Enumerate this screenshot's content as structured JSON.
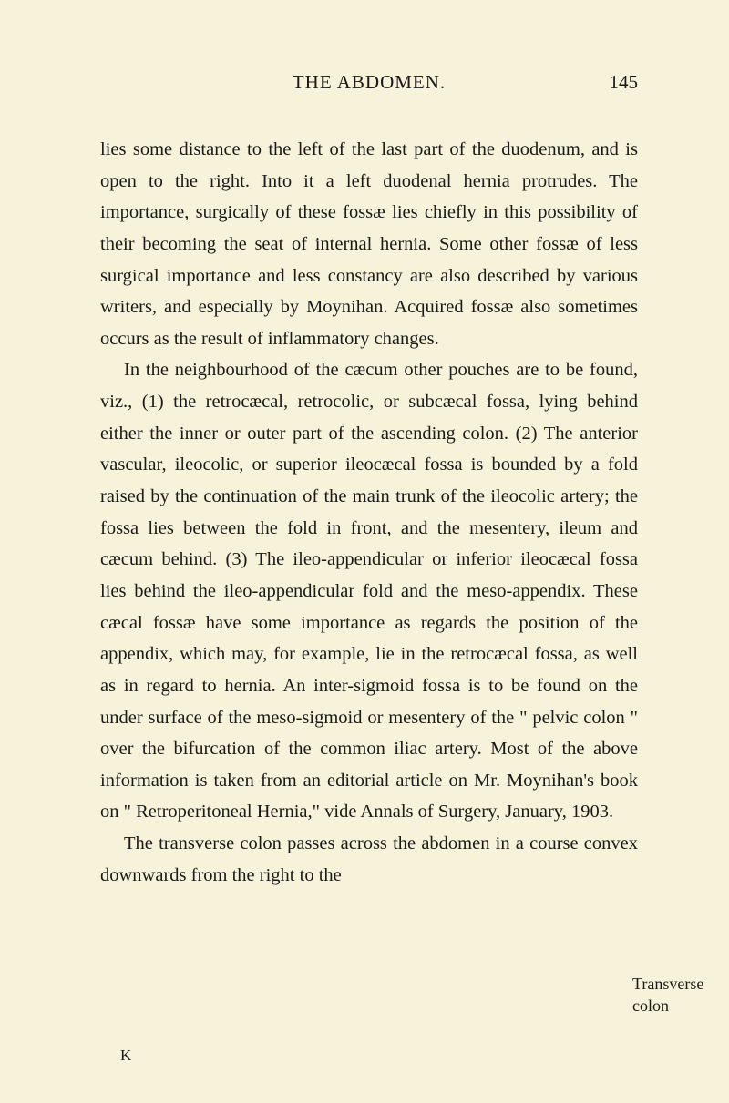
{
  "header": {
    "title": "THE ABDOMEN.",
    "pageNumber": "145"
  },
  "paragraphs": {
    "p1": "lies some distance to the left of the last part of the duodenum, and is open to the right. Into it a left duodenal hernia protrudes. The importance, surgically of these fossæ lies chiefly in this possibility of their becoming the seat of internal hernia. Some other fossæ of less surgical importance and less constancy are also described by various writers, and especially by Moynihan. Acquired fossæ also sometimes occurs as the result of inflammatory changes.",
    "p2": "In the neighbourhood of the cæcum other pouches are to be found, viz., (1) the retrocæcal, retrocolic, or subcæcal fossa, lying behind either the inner or outer part of the ascending colon. (2) The anterior vascular, ileocolic, or superior ileocæcal fossa is bounded by a fold raised by the continuation of the main trunk of the ileocolic artery; the fossa lies between the fold in front, and the mesentery, ileum and cæcum behind. (3) The ileo-appendicular or inferior ileocæcal fossa lies behind the ileo-appendicular fold and the meso-appendix. These cæcal fossæ have some importance as regards the position of the appendix, which may, for example, lie in the retrocæcal fossa, as well as in regard to hernia. An inter-sigmoid fossa is to be found on the under surface of the meso-sigmoid or mesentery of the \" pelvic colon \" over the bifurcation of the common iliac artery. Most of the above information is taken from an editorial article on Mr. Moynihan's book on \" Retroperitoneal Hernia,\" vide Annals of Surgery, January, 1903.",
    "p3": "The transverse colon passes across the abdomen in a course convex downwards from the right to the"
  },
  "marginNote": "Transverse colon",
  "signatureMark": "K",
  "styling": {
    "backgroundColor": "#f6f3da",
    "textColor": "#1a1a1a",
    "bodyFontSize": 20.5,
    "headerFontSize": 21,
    "marginNoteFontSize": 18,
    "lineHeight": 1.69,
    "pageWidth": 800,
    "pageHeight": 1211,
    "fontFamily": "Georgia, Times New Roman, serif"
  }
}
